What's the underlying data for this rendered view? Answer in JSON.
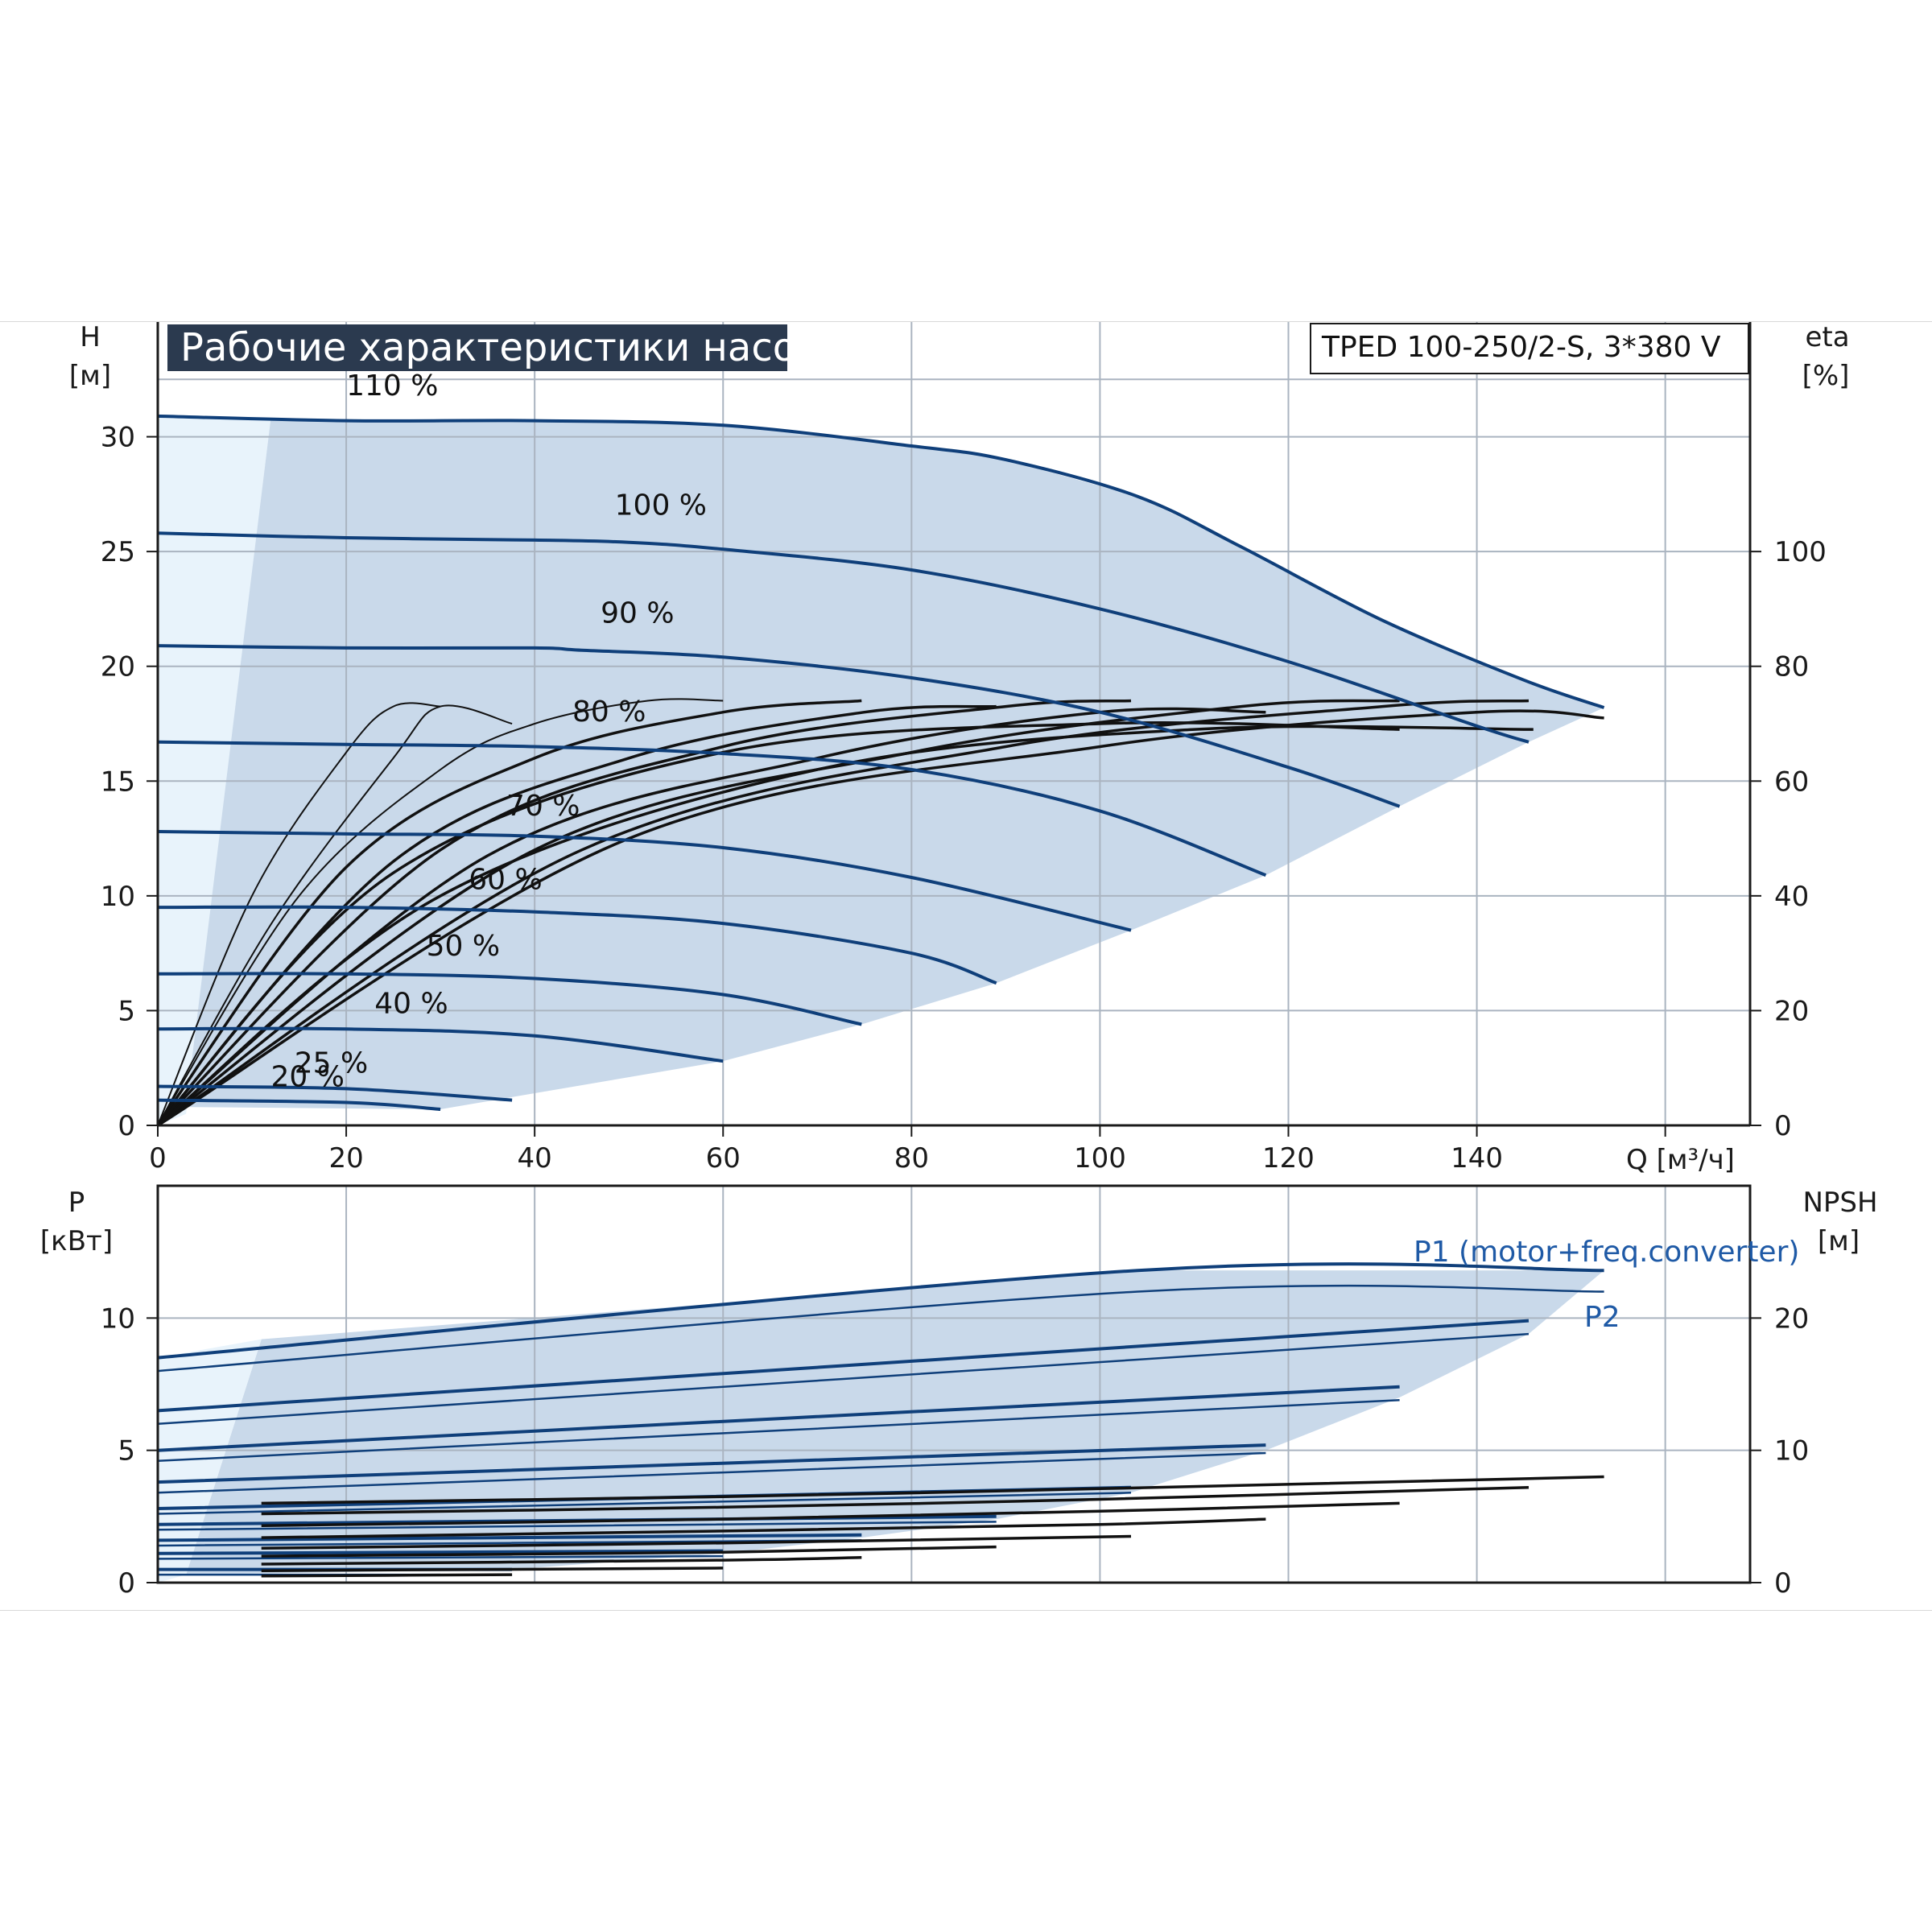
{
  "title": "Рабочие характеристики насоса",
  "model": "TPED 100-250/2-S, 3*380 V",
  "colors": {
    "curve": "#0f3f7a",
    "eff": "#111111",
    "band": "#c9d9ea",
    "band_light": "#e8f3fb",
    "grid": "#aab4c0",
    "title_bg": "#2b3a4f"
  },
  "chart_data": [
    {
      "type": "line",
      "xlabel": "Q [м³/ч]",
      "ylabel": [
        "H",
        "[м]"
      ],
      "y2label": [
        "eta",
        "[%]"
      ],
      "xlim": [
        0,
        169
      ],
      "ylim": [
        0,
        35
      ],
      "y2lim": [
        0,
        140
      ],
      "x_ticks": [
        "0",
        "20",
        "40",
        "60",
        "80",
        "100",
        "120",
        "140"
      ],
      "y_ticks": [
        "0",
        "5",
        "10",
        "15",
        "20",
        "25",
        "30"
      ],
      "y2_ticks": [
        "0",
        "20",
        "40",
        "60",
        "80",
        "100"
      ],
      "grid": true,
      "series": [
        {
          "name": "110 %",
          "x": [
            0,
            20,
            40,
            60,
            80,
            90,
            104,
            115,
            130,
            145,
            153.5
          ],
          "y": [
            30.9,
            30.7,
            30.7,
            30.5,
            29.6,
            29.0,
            27.4,
            25.2,
            22.0,
            19.4,
            18.2
          ]
        },
        {
          "name": "100 %",
          "x": [
            0,
            20,
            40,
            50,
            60,
            80,
            100,
            120,
            140,
            145.5
          ],
          "y": [
            25.8,
            25.6,
            25.5,
            25.4,
            25.1,
            24.2,
            22.5,
            20.2,
            17.4,
            16.7
          ]
        },
        {
          "name": "90 %",
          "x": [
            0,
            20,
            40,
            45,
            60,
            80,
            100,
            120,
            131.8
          ],
          "y": [
            20.9,
            20.8,
            20.8,
            20.7,
            20.4,
            19.5,
            18.0,
            15.6,
            13.9
          ]
        },
        {
          "name": "80 %",
          "x": [
            0,
            20,
            40,
            60,
            80,
            100,
            117.6
          ],
          "y": [
            16.7,
            16.6,
            16.5,
            16.2,
            15.5,
            13.7,
            10.9
          ]
        },
        {
          "name": "70 %",
          "x": [
            0,
            20,
            40,
            60,
            80,
            103.3
          ],
          "y": [
            12.8,
            12.7,
            12.6,
            12.1,
            10.8,
            8.5
          ]
        },
        {
          "name": "60 %",
          "x": [
            0,
            20,
            40,
            60,
            80,
            89
          ],
          "y": [
            9.5,
            9.5,
            9.3,
            8.8,
            7.5,
            6.2
          ]
        },
        {
          "name": "50 %",
          "x": [
            0,
            20,
            40,
            60,
            74.7
          ],
          "y": [
            6.6,
            6.6,
            6.4,
            5.7,
            4.4
          ]
        },
        {
          "name": "40 %",
          "x": [
            0,
            20,
            40,
            60
          ],
          "y": [
            4.2,
            4.2,
            3.9,
            2.8
          ]
        },
        {
          "name": "25 %",
          "x": [
            0,
            20,
            37.6
          ],
          "y": [
            1.7,
            1.6,
            1.1
          ]
        },
        {
          "name": "20 %",
          "x": [
            0,
            20,
            30
          ],
          "y": [
            1.1,
            1.0,
            0.7
          ]
        }
      ],
      "efficiency_y2": [
        {
          "x": [
            0,
            10,
            20,
            25,
            30
          ],
          "y": [
            0,
            40,
            65,
            73,
            73
          ]
        },
        {
          "x": [
            0,
            12,
            25,
            30,
            37.6
          ],
          "y": [
            0,
            35,
            64,
            73,
            70
          ]
        },
        {
          "x": [
            0,
            15,
            30,
            40,
            52,
            60
          ],
          "y": [
            0,
            40,
            62,
            70,
            74,
            74
          ]
        },
        {
          "x": [
            0,
            20,
            40,
            60,
            74.7
          ],
          "y": [
            0,
            45,
            64,
            72,
            74
          ]
        },
        {
          "x": [
            0,
            25,
            50,
            75,
            89
          ],
          "y": [
            0,
            46,
            64,
            72,
            73
          ]
        },
        {
          "x": [
            0,
            30,
            60,
            90,
            103.3
          ],
          "y": [
            0,
            48,
            66,
            73,
            74
          ]
        },
        {
          "x": [
            0,
            35,
            70,
            100,
            117.6
          ],
          "y": [
            0,
            47,
            64,
            72,
            72
          ]
        },
        {
          "x": [
            0,
            40,
            80,
            115,
            131.8
          ],
          "y": [
            0,
            48,
            65,
            73,
            74
          ]
        },
        {
          "x": [
            0,
            45,
            90,
            130,
            145.5
          ],
          "y": [
            0,
            48,
            66,
            73,
            74
          ]
        },
        {
          "x": [
            0,
            50,
            100,
            140,
            153.5
          ],
          "y": [
            0,
            50,
            66,
            72,
            71
          ]
        },
        {
          "x": [
            0,
            30,
            70,
            110,
            146
          ],
          "y": [
            0,
            40,
            62,
            69,
            69
          ]
        },
        {
          "x": [
            0,
            25,
            60,
            100,
            131.8
          ],
          "y": [
            0,
            44,
            65,
            70,
            69
          ]
        }
      ],
      "labels": [
        "110 %",
        "100 %",
        "90 %",
        "80 %",
        "70 %",
        "60 %",
        "50 %",
        "40 %",
        "25 %",
        "20 %"
      ]
    },
    {
      "type": "line",
      "ylabel": [
        "P",
        "[кВт]"
      ],
      "y2label": [
        "NPSH",
        "[м]"
      ],
      "xlim": [
        0,
        169
      ],
      "ylim": [
        0,
        15
      ],
      "y2lim": [
        0,
        30
      ],
      "y_ticks": [
        "0",
        "5",
        "10"
      ],
      "y2_ticks": [
        "0",
        "10",
        "20"
      ],
      "grid": true,
      "annotations": [
        "P1 (motor+freq.converter)",
        "P2"
      ],
      "power_series": [
        {
          "name": "P1",
          "x": [
            0,
            104,
            153.5
          ],
          "y": [
            8.5,
            11.8,
            11.8
          ]
        },
        {
          "name": "P2",
          "x": [
            0,
            104,
            153.5
          ],
          "y": [
            8.0,
            11.0,
            11.0
          ]
        },
        {
          "x": [
            0,
            145.5
          ],
          "y": [
            6.5,
            9.9
          ]
        },
        {
          "x": [
            0,
            145.5
          ],
          "y": [
            6.0,
            9.4
          ]
        },
        {
          "x": [
            0,
            131.8
          ],
          "y": [
            5.0,
            7.4
          ]
        },
        {
          "x": [
            0,
            131.8
          ],
          "y": [
            4.6,
            6.9
          ]
        },
        {
          "x": [
            0,
            117.6
          ],
          "y": [
            3.8,
            5.2
          ]
        },
        {
          "x": [
            0,
            117.6
          ],
          "y": [
            3.4,
            4.9
          ]
        },
        {
          "x": [
            0,
            103.3
          ],
          "y": [
            2.8,
            3.6
          ]
        },
        {
          "x": [
            0,
            103.3
          ],
          "y": [
            2.6,
            3.4
          ]
        },
        {
          "x": [
            0,
            89
          ],
          "y": [
            2.2,
            2.5
          ]
        },
        {
          "x": [
            0,
            89
          ],
          "y": [
            2.0,
            2.3
          ]
        },
        {
          "x": [
            0,
            74.7
          ],
          "y": [
            1.6,
            1.8
          ]
        },
        {
          "x": [
            0,
            74.7
          ],
          "y": [
            1.4,
            1.6
          ]
        },
        {
          "x": [
            0,
            60
          ],
          "y": [
            1.1,
            1.2
          ]
        },
        {
          "x": [
            0,
            60
          ],
          "y": [
            0.9,
            1.0
          ]
        },
        {
          "x": [
            0,
            37.6
          ],
          "y": [
            0.5,
            0.5
          ]
        },
        {
          "x": [
            0,
            30
          ],
          "y": [
            0.3,
            0.3
          ]
        }
      ],
      "npsh_series": [
        {
          "x": [
            11,
            60,
            100,
            153.5
          ],
          "y": [
            6.0,
            6.5,
            7.1,
            8.0
          ]
        },
        {
          "x": [
            11,
            60,
            100,
            145.5
          ],
          "y": [
            5.2,
            5.7,
            6.3,
            7.2
          ]
        },
        {
          "x": [
            11,
            60,
            100,
            131.8
          ],
          "y": [
            4.3,
            4.8,
            5.4,
            6.0
          ]
        },
        {
          "x": [
            11,
            60,
            100,
            117.6
          ],
          "y": [
            3.4,
            3.9,
            4.4,
            4.8
          ]
        },
        {
          "x": [
            11,
            60,
            103.3
          ],
          "y": [
            2.6,
            3.0,
            3.5
          ]
        },
        {
          "x": [
            11,
            60,
            89
          ],
          "y": [
            2.0,
            2.3,
            2.7
          ]
        },
        {
          "x": [
            11,
            60,
            74.7
          ],
          "y": [
            1.4,
            1.7,
            1.9
          ]
        },
        {
          "x": [
            11,
            60
          ],
          "y": [
            0.9,
            1.1
          ]
        },
        {
          "x": [
            11,
            37.6
          ],
          "y": [
            0.5,
            0.6
          ]
        }
      ]
    }
  ]
}
